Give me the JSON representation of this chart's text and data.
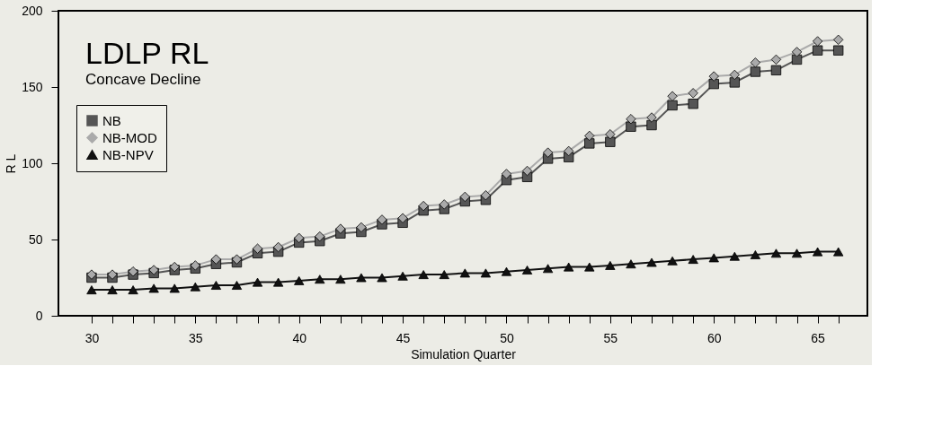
{
  "chart_data": {
    "type": "line",
    "title": "LDLP RL",
    "subtitle": "Concave Decline",
    "xlabel": "Simulation Quarter",
    "ylabel": "R L",
    "x": [
      30,
      31,
      32,
      33,
      34,
      35,
      36,
      37,
      38,
      39,
      40,
      41,
      42,
      43,
      44,
      45,
      46,
      47,
      48,
      49,
      50,
      51,
      52,
      53,
      54,
      55,
      56,
      57,
      58,
      59,
      60,
      61,
      62,
      63,
      64,
      65,
      66
    ],
    "series": [
      {
        "name": "NB",
        "color": "#555555",
        "marker": "square",
        "values": [
          25,
          25,
          27,
          28,
          30,
          31,
          34,
          35,
          41,
          42,
          48,
          49,
          54,
          55,
          60,
          61,
          69,
          70,
          75,
          76,
          89,
          91,
          103,
          104,
          113,
          114,
          124,
          125,
          138,
          139,
          152,
          153,
          160,
          161,
          168,
          174,
          174
        ]
      },
      {
        "name": "NB-MOD",
        "color": "#aaaaaa",
        "marker": "diamond",
        "values": [
          27,
          27,
          29,
          30,
          32,
          33,
          37,
          37,
          44,
          45,
          51,
          52,
          57,
          58,
          63,
          64,
          72,
          73,
          78,
          79,
          93,
          95,
          107,
          108,
          118,
          119,
          129,
          130,
          144,
          146,
          157,
          158,
          166,
          168,
          173,
          180,
          181
        ]
      },
      {
        "name": "NB-NPV",
        "color": "#111111",
        "marker": "triangle",
        "values": [
          17,
          17,
          17,
          18,
          18,
          19,
          20,
          20,
          22,
          22,
          23,
          24,
          24,
          25,
          25,
          26,
          27,
          27,
          28,
          28,
          29,
          30,
          31,
          32,
          32,
          33,
          34,
          35,
          36,
          37,
          38,
          39,
          40,
          41,
          41,
          42,
          42
        ]
      }
    ],
    "xlim": [
      28.4,
      67.4
    ],
    "xticks": [
      30,
      {
        "value": 31,
        "label": null
      },
      {
        "value": 32,
        "label": null
      },
      {
        "value": 33,
        "label": null
      },
      {
        "value": 34,
        "label": null
      },
      35,
      {
        "value": 36,
        "label": null
      },
      {
        "value": 37,
        "label": null
      },
      {
        "value": 38,
        "label": null
      },
      {
        "value": 39,
        "label": null
      },
      40,
      {
        "value": 41,
        "label": null
      },
      {
        "value": 42,
        "label": null
      },
      {
        "value": 43,
        "label": null
      },
      {
        "value": 44,
        "label": null
      },
      45,
      {
        "value": 46,
        "label": null
      },
      {
        "value": 47,
        "label": null
      },
      {
        "value": 48,
        "label": null
      },
      {
        "value": 49,
        "label": null
      },
      50,
      {
        "value": 51,
        "label": null
      },
      {
        "value": 52,
        "label": null
      },
      {
        "value": 53,
        "label": null
      },
      {
        "value": 54,
        "label": null
      },
      55,
      {
        "value": 56,
        "label": null
      },
      {
        "value": 57,
        "label": null
      },
      {
        "value": 58,
        "label": null
      },
      {
        "value": 59,
        "label": null
      },
      60,
      {
        "value": 61,
        "label": null
      },
      {
        "value": 62,
        "label": null
      },
      {
        "value": 63,
        "label": null
      },
      {
        "value": 64,
        "label": null
      },
      65,
      {
        "value": 66,
        "label": null
      }
    ],
    "ylim": [
      0,
      200
    ],
    "yticks": [
      0,
      50,
      100,
      150,
      200
    ],
    "grid": false,
    "legend": "top left",
    "line_style": "solid"
  }
}
